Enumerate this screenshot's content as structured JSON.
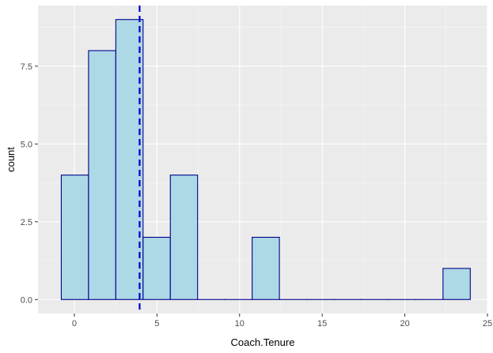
{
  "chart_data": {
    "type": "bar",
    "xlabel": "Coach.Tenure",
    "ylabel": "count",
    "xlim": [
      -2.2,
      25
    ],
    "ylim": [
      -0.45,
      9.45
    ],
    "x_ticks": [
      0,
      5,
      10,
      15,
      20,
      25
    ],
    "x_tick_labels": [
      "0",
      "5",
      "10",
      "15",
      "20",
      "25"
    ],
    "y_ticks": [
      0,
      2.5,
      5,
      7.5
    ],
    "y_tick_labels": [
      "0.0",
      "2.5",
      "5.0",
      "7.5"
    ],
    "grid": true,
    "bins": [
      {
        "x0": -0.79,
        "x1": 0.86,
        "count": 4
      },
      {
        "x0": 0.86,
        "x1": 2.51,
        "count": 8
      },
      {
        "x0": 2.51,
        "x1": 4.16,
        "count": 9
      },
      {
        "x0": 4.16,
        "x1": 5.81,
        "count": 2
      },
      {
        "x0": 5.81,
        "x1": 7.46,
        "count": 4
      },
      {
        "x0": 7.46,
        "x1": 9.11,
        "count": 0
      },
      {
        "x0": 9.11,
        "x1": 10.76,
        "count": 0
      },
      {
        "x0": 10.76,
        "x1": 12.41,
        "count": 2
      },
      {
        "x0": 12.41,
        "x1": 14.06,
        "count": 0
      },
      {
        "x0": 14.06,
        "x1": 15.71,
        "count": 0
      },
      {
        "x0": 15.71,
        "x1": 17.36,
        "count": 0
      },
      {
        "x0": 17.36,
        "x1": 19.01,
        "count": 0
      },
      {
        "x0": 19.01,
        "x1": 20.66,
        "count": 0
      },
      {
        "x0": 20.66,
        "x1": 22.31,
        "count": 0
      },
      {
        "x0": 22.31,
        "x1": 23.96,
        "count": 1
      }
    ],
    "reference_line": {
      "x": 3.95,
      "style": "dashed"
    }
  },
  "colors": {
    "panel_background": "#ebebeb",
    "grid_major": "#ffffff",
    "bar_fill": "#add8e6",
    "bar_outline": "#00008b",
    "reference_line": "#0000cd",
    "tick_mark": "#333333"
  }
}
